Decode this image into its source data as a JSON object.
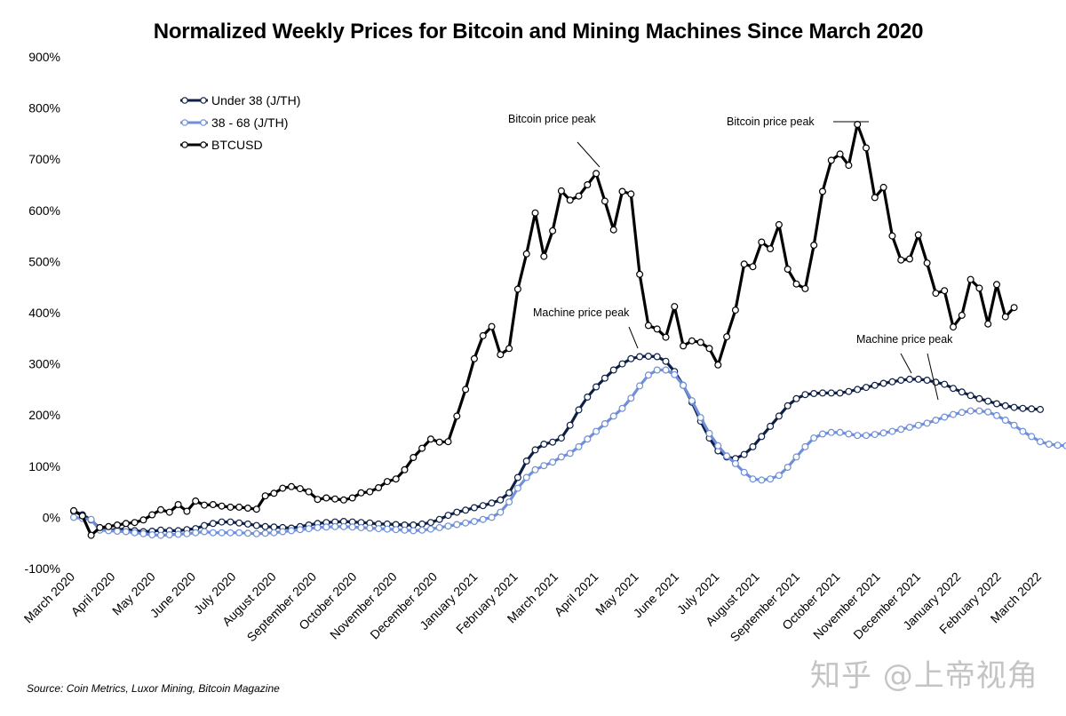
{
  "title": "Normalized Weekly Prices for Bitcoin and Mining Machines Since March 2020",
  "source": "Source: Coin Metrics, Luxor Mining, Bitcoin Magazine",
  "watermark": "知乎 @上帝视角",
  "chart_data": {
    "type": "line",
    "title": "Normalized Weekly Prices for Bitcoin and Mining Machines Since March 2020",
    "xlabel": "",
    "ylabel": "",
    "ylim": [
      -100,
      900
    ],
    "y_ticks": [
      "-100%",
      "0%",
      "100%",
      "200%",
      "300%",
      "400%",
      "500%",
      "600%",
      "700%",
      "800%",
      "900%"
    ],
    "x_ticks": [
      "March 2020",
      "April 2020",
      "May 2020",
      "June 2020",
      "July 2020",
      "August 2020",
      "September 2020",
      "October 2020",
      "November 2020",
      "December 2020",
      "January 2021",
      "February 2021",
      "March 2021",
      "April 2021",
      "May 2021",
      "June 2021",
      "July 2021",
      "August 2021",
      "September 2021",
      "October 2021",
      "November 2021",
      "December 2021",
      "January 2022",
      "February 2022",
      "March 2022"
    ],
    "x_unit": "weeks since first week of March 2020",
    "grid": false,
    "legend_position": "top-left",
    "series": [
      {
        "name": "Under 38 (J/TH)",
        "color": "#0d1f45",
        "values": [
          12,
          5,
          -5,
          -22,
          -25,
          -24,
          -23,
          -26,
          -28,
          -27,
          -25,
          -26,
          -26,
          -24,
          -22,
          -16,
          -12,
          -9,
          -9,
          -11,
          -13,
          -16,
          -18,
          -19,
          -20,
          -21,
          -18,
          -15,
          -12,
          -10,
          -9,
          -8,
          -9,
          -10,
          -11,
          -13,
          -13,
          -14,
          -15,
          -15,
          -13,
          -10,
          -4,
          4,
          10,
          14,
          19,
          23,
          28,
          34,
          48,
          78,
          110,
          132,
          143,
          147,
          155,
          180,
          210,
          235,
          255,
          272,
          288,
          300,
          310,
          314,
          315,
          314,
          305,
          285,
          258,
          225,
          188,
          155,
          130,
          118,
          115,
          123,
          138,
          158,
          178,
          198,
          218,
          232,
          240,
          242,
          243,
          243,
          243,
          246,
          250,
          254,
          258,
          262,
          265,
          268,
          270,
          270,
          268,
          264,
          260,
          252,
          245,
          238,
          232,
          227,
          222,
          218,
          215,
          213,
          212,
          211
        ]
      },
      {
        "name": "38 - 68 (J/TH)",
        "color": "#6f8fd9",
        "values": [
          0,
          -2,
          -4,
          -25,
          -26,
          -27,
          -28,
          -30,
          -32,
          -34,
          -35,
          -34,
          -33,
          -32,
          -30,
          -28,
          -30,
          -30,
          -30,
          -30,
          -31,
          -32,
          -31,
          -30,
          -28,
          -26,
          -24,
          -22,
          -20,
          -19,
          -18,
          -18,
          -19,
          -20,
          -21,
          -22,
          -23,
          -24,
          -25,
          -26,
          -25,
          -23,
          -20,
          -17,
          -14,
          -11,
          -8,
          -4,
          0,
          10,
          30,
          57,
          78,
          93,
          101,
          108,
          118,
          125,
          138,
          153,
          168,
          183,
          198,
          213,
          233,
          257,
          278,
          288,
          288,
          279,
          258,
          228,
          195,
          164,
          140,
          120,
          105,
          88,
          75,
          73,
          75,
          82,
          98,
          118,
          138,
          155,
          163,
          166,
          166,
          163,
          160,
          160,
          162,
          165,
          168,
          172,
          176,
          180,
          184,
          190,
          196,
          201,
          205,
          208,
          208,
          206,
          199,
          190,
          180,
          168,
          158,
          148,
          143,
          141,
          140,
          139,
          138,
          137
        ]
      },
      {
        "name": "BTCUSD",
        "color": "#000000",
        "values": [
          13,
          3,
          -35,
          -20,
          -18,
          -15,
          -12,
          -10,
          -5,
          5,
          15,
          10,
          25,
          12,
          32,
          24,
          25,
          22,
          20,
          20,
          18,
          16,
          42,
          47,
          57,
          60,
          56,
          50,
          35,
          38,
          36,
          34,
          38,
          48,
          50,
          58,
          70,
          75,
          93,
          117,
          135,
          153,
          147,
          148,
          198,
          250,
          310,
          355,
          373,
          318,
          330,
          446,
          515,
          595,
          510,
          560,
          638,
          620,
          628,
          650,
          672,
          618,
          562,
          637,
          632,
          475,
          375,
          368,
          352,
          412,
          335,
          345,
          342,
          330,
          298,
          353,
          405,
          495,
          490,
          538,
          525,
          572,
          485,
          456,
          447,
          532,
          637,
          698,
          710,
          688,
          768,
          722,
          625,
          645,
          550,
          503,
          505,
          552,
          497,
          438,
          443,
          372,
          395,
          465,
          448,
          378,
          455,
          392,
          410
        ]
      }
    ],
    "annotations": [
      {
        "text": "Bitcoin price peak",
        "target_series": "BTCUSD"
      },
      {
        "text": "Bitcoin price peak",
        "target_series": "BTCUSD"
      },
      {
        "text": "Machine price peak",
        "target_series": "Under 38 (J/TH)"
      },
      {
        "text": "Machine price peak",
        "target_series": "Under 38 (J/TH)"
      }
    ]
  }
}
